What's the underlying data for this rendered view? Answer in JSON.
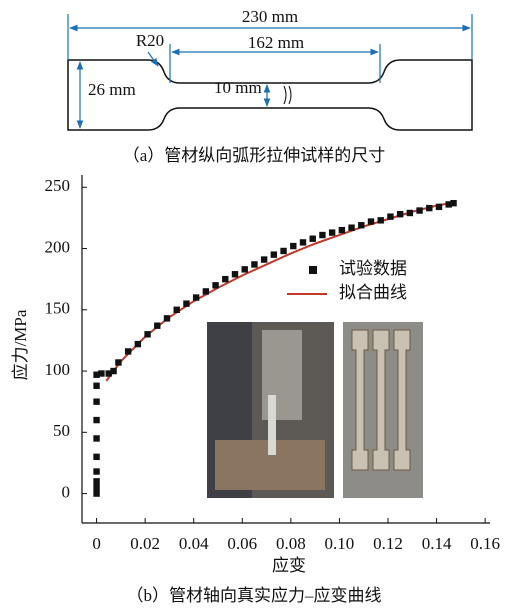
{
  "figure": {
    "dimensions": {
      "total_length": "230 mm",
      "gauge_length": "162 mm",
      "radius": "R20",
      "grip_width": "26 mm",
      "gauge_width": "10 mm"
    },
    "caption_a": "（a）管材纵向弧形拉伸试样的尺寸",
    "caption_b": "（b）管材轴向真实应力–应变曲线"
  },
  "chart_data": {
    "type": "scatter",
    "x_label": "应变",
    "y_label": "应力/MPa",
    "xlim": [
      -0.006,
      0.162
    ],
    "ylim": [
      -24,
      260
    ],
    "xticks": [
      0,
      0.02,
      0.04,
      0.06,
      0.08,
      {
        "value": 0.1,
        "label": "0.10"
      },
      0.12,
      0.14,
      0.16
    ],
    "yticks": [
      0,
      50,
      100,
      150,
      200,
      250
    ],
    "legend": "center-right",
    "series": [
      {
        "name": "试验数据",
        "kind": "scatter",
        "color": "#111111",
        "x": [
          0,
          0,
          0,
          0,
          0,
          0,
          0,
          0,
          0,
          0,
          0.002,
          0.005,
          0.007,
          0.009,
          0.013,
          0.017,
          0.021,
          0.025,
          0.029,
          0.033,
          0.037,
          0.041,
          0.045,
          0.049,
          0.053,
          0.057,
          0.061,
          0.065,
          0.069,
          0.073,
          0.077,
          0.081,
          0.085,
          0.089,
          0.093,
          0.097,
          0.101,
          0.105,
          0.109,
          0.113,
          0.117,
          0.121,
          0.125,
          0.129,
          0.133,
          0.137,
          0.141,
          0.145,
          0.147
        ],
        "values": [
          0,
          5,
          10,
          18,
          30,
          45,
          60,
          75,
          88,
          97,
          98,
          98,
          100,
          107,
          116,
          122,
          130,
          137,
          143,
          150,
          155,
          160,
          165,
          170,
          175,
          179,
          183,
          187,
          191,
          195,
          198,
          202,
          205,
          208,
          211,
          213,
          215,
          217,
          219,
          222,
          223,
          226,
          228,
          229,
          231,
          233,
          234,
          236,
          237
        ]
      },
      {
        "name": "拟合曲线",
        "kind": "line",
        "color": "#c0392b",
        "x": [
          0.004,
          0.01,
          0.02,
          0.03,
          0.04,
          0.05,
          0.06,
          0.07,
          0.08,
          0.09,
          0.1,
          0.11,
          0.12,
          0.13,
          0.14,
          0.148
        ],
        "values": [
          92,
          108,
          128,
          144,
          157,
          168,
          178,
          187,
          196,
          204,
          211,
          218,
          224,
          230,
          235,
          238
        ]
      }
    ]
  }
}
